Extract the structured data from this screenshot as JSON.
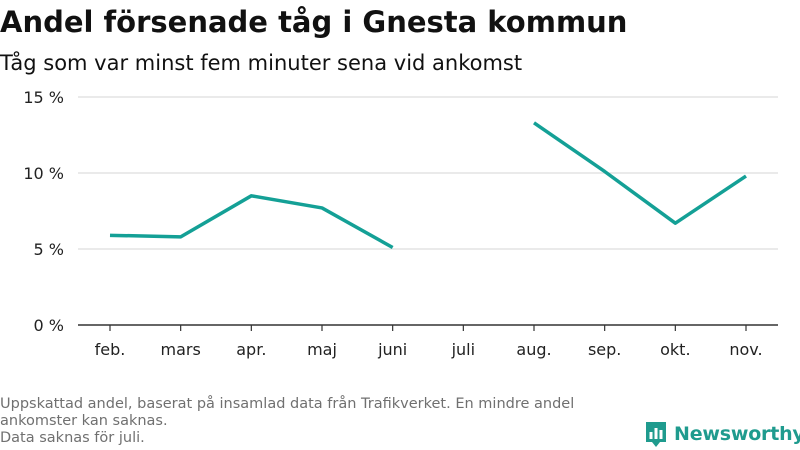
{
  "title": "Andel försenade tåg i Gnesta kommun",
  "subtitle": "Tåg som var minst fem minuter sena vid ankomst",
  "footnote": {
    "line1": "Uppskattad andel, baserat på insamlad data från Trafikverket. En mindre andel",
    "line2": "ankomster kan saknas.",
    "line3": "Data saknas för juli."
  },
  "logo": {
    "text": "Newsworthy",
    "color": "#1f9b8e"
  },
  "colors": {
    "line": "#14a096",
    "grid": "#dddddd",
    "axis": "#333333"
  },
  "chart_data": {
    "type": "line",
    "title": "Andel försenade tåg i Gnesta kommun",
    "subtitle": "Tåg som var minst fem minuter sena vid ankomst",
    "categories": [
      "feb.",
      "mars",
      "apr.",
      "maj",
      "juni",
      "juli",
      "aug.",
      "sep.",
      "okt.",
      "nov."
    ],
    "series": [
      {
        "values": [
          5.9,
          5.8,
          8.5,
          7.7,
          5.1,
          null,
          13.3,
          10.1,
          6.7,
          9.8
        ]
      }
    ],
    "yticks": [
      "0 %",
      "5 %",
      "10 %",
      "15 %"
    ],
    "ylim": [
      0,
      15
    ],
    "grid": true,
    "legend": "none"
  }
}
